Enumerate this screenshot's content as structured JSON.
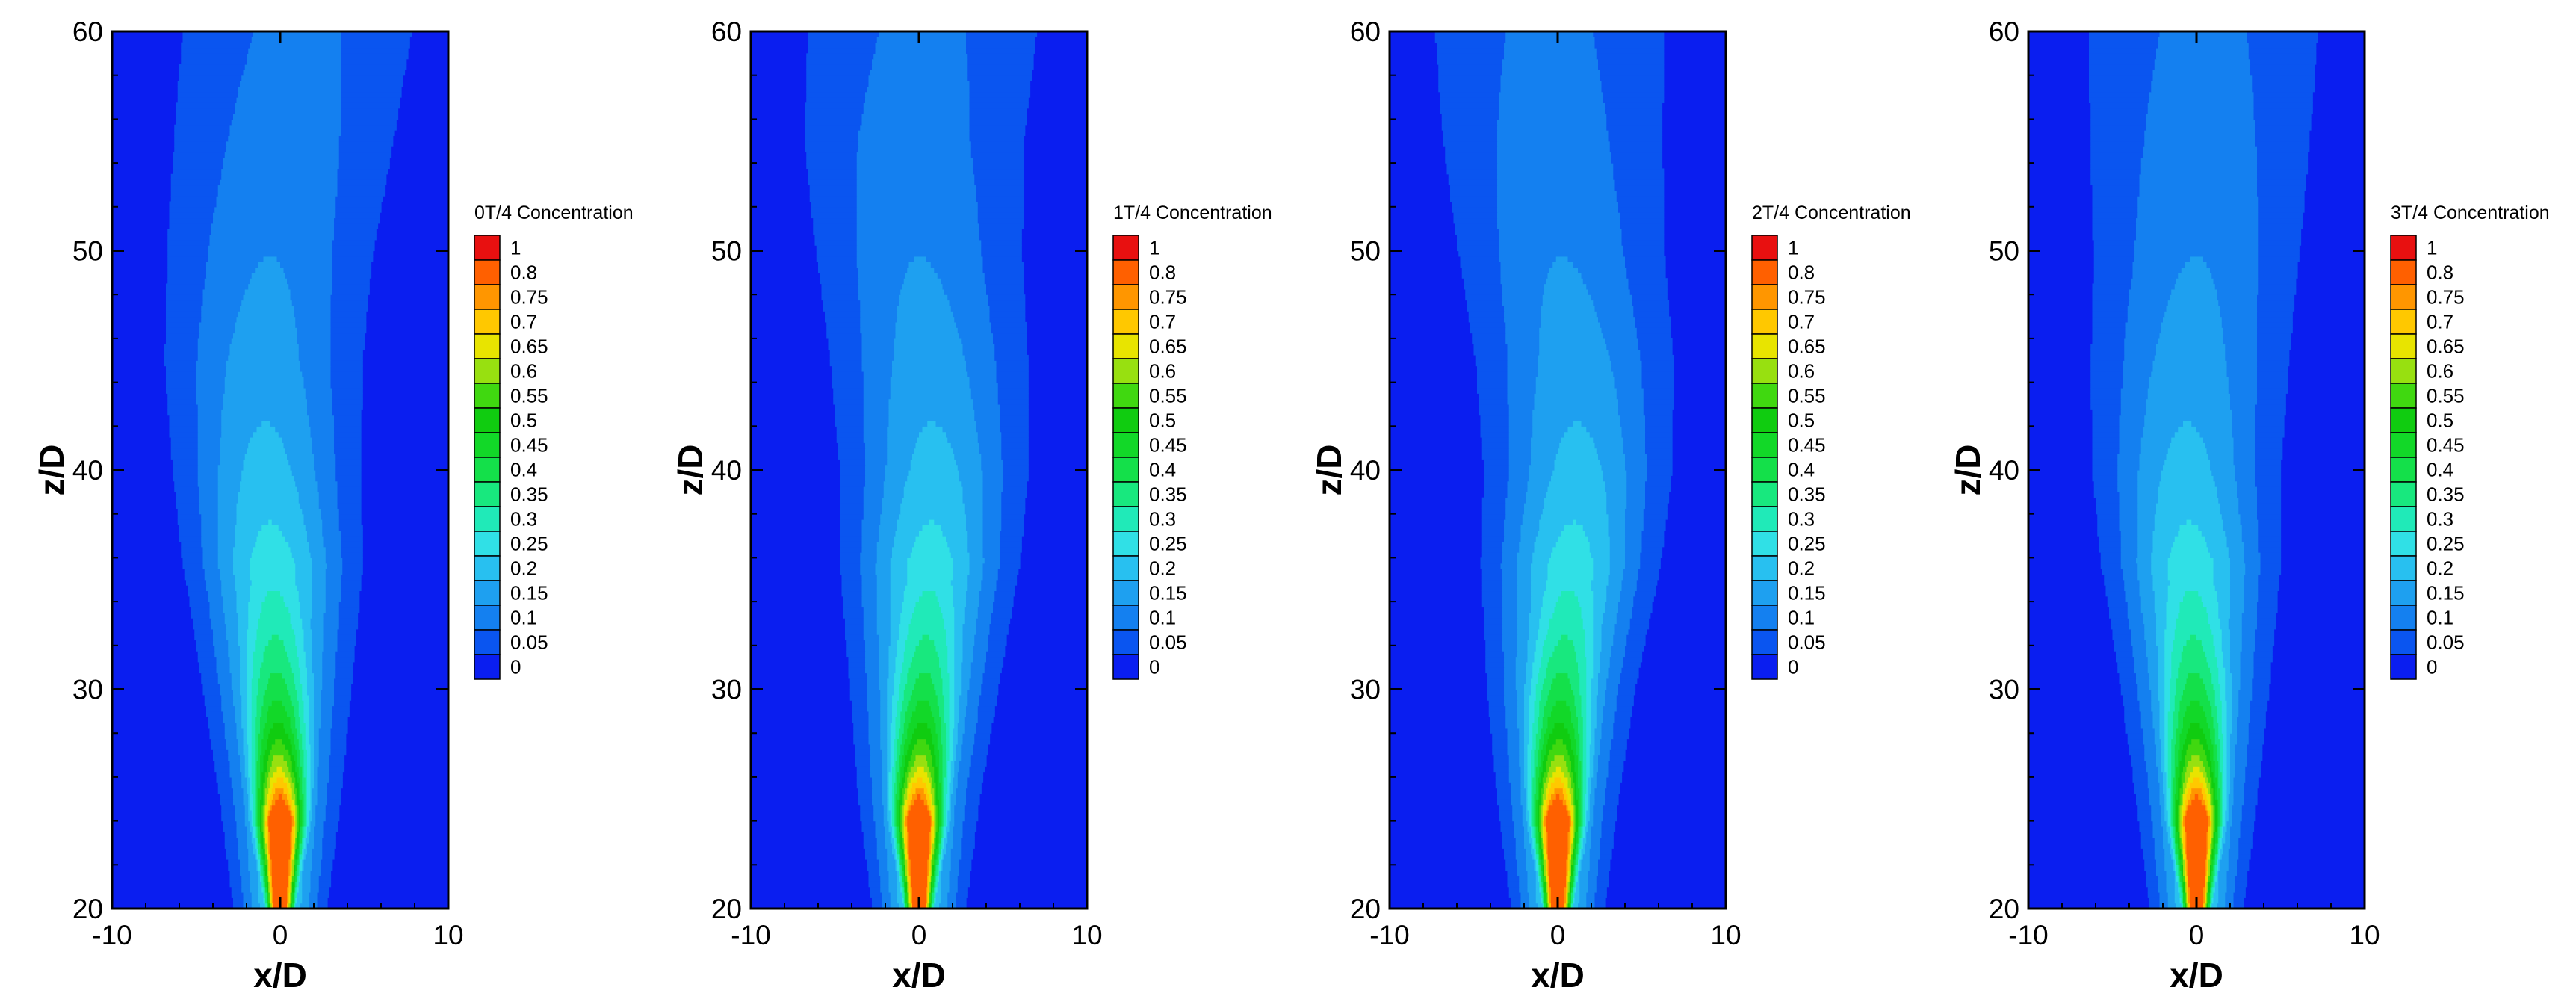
{
  "chart_data": [
    {
      "type": "heatmap",
      "legend_title": "0T/4 Concentration",
      "xlabel": "x/D",
      "ylabel": "z/D",
      "xlim": [
        -10,
        10
      ],
      "ylim": [
        20,
        60
      ],
      "x_ticks": [
        -10,
        0,
        10
      ],
      "y_ticks": [
        20,
        30,
        40,
        50,
        60
      ],
      "x_tick_labels": [
        "-10",
        "0",
        "10"
      ],
      "y_tick_labels": [
        "20",
        "30",
        "40",
        "50",
        "60"
      ],
      "levels": [
        0,
        0.05,
        0.1,
        0.15,
        0.2,
        0.25,
        0.3,
        0.35,
        0.4,
        0.45,
        0.5,
        0.55,
        0.6,
        0.65,
        0.7,
        0.75,
        0.8,
        1
      ],
      "level_labels": [
        "0",
        "0.05",
        "0.1",
        "0.15",
        "0.2",
        "0.25",
        "0.3",
        "0.35",
        "0.4",
        "0.45",
        "0.5",
        "0.55",
        "0.6",
        "0.65",
        "0.7",
        "0.75",
        "0.8",
        "1"
      ],
      "level_colors": [
        "#0a1ef0",
        "#0a55f0",
        "#1480f0",
        "#1ea0f0",
        "#28c0f0",
        "#30e0e6",
        "#20eab8",
        "#18e87e",
        "#14e04a",
        "#12d828",
        "#10cc10",
        "#40d810",
        "#98e010",
        "#e8e400",
        "#ffc800",
        "#ff9600",
        "#ff6000",
        "#e81010"
      ],
      "jet": {
        "nozzle_halfwidth": 0.55,
        "core_length": 4.0,
        "spread_rate": 0.12,
        "centerline_decay": 0.22,
        "min_halfwidth": 2.5,
        "lateral_sway": [
          [
            20,
            0
          ],
          [
            25,
            0
          ],
          [
            30,
            -0.2
          ],
          [
            35,
            -0.4
          ],
          [
            40,
            -0.8
          ],
          [
            45,
            -1.0
          ],
          [
            50,
            -0.6
          ],
          [
            55,
            0.2
          ],
          [
            60,
            1.0
          ]
        ],
        "background": 0.02
      }
    },
    {
      "type": "heatmap",
      "legend_title": "1T/4 Concentration",
      "xlabel": "x/D",
      "ylabel": "z/D",
      "xlim": [
        -10,
        10
      ],
      "ylim": [
        20,
        60
      ],
      "x_ticks": [
        -10,
        0,
        10
      ],
      "y_ticks": [
        20,
        30,
        40,
        50,
        60
      ],
      "x_tick_labels": [
        "-10",
        "0",
        "10"
      ],
      "y_tick_labels": [
        "20",
        "30",
        "40",
        "50",
        "60"
      ],
      "levels": [
        0,
        0.05,
        0.1,
        0.15,
        0.2,
        0.25,
        0.3,
        0.35,
        0.4,
        0.45,
        0.5,
        0.55,
        0.6,
        0.65,
        0.7,
        0.75,
        0.8,
        1
      ],
      "level_labels": [
        "0",
        "0.05",
        "0.1",
        "0.15",
        "0.2",
        "0.25",
        "0.3",
        "0.35",
        "0.4",
        "0.45",
        "0.5",
        "0.55",
        "0.6",
        "0.65",
        "0.7",
        "0.75",
        "0.8",
        "1"
      ],
      "level_colors": [
        "#0a1ef0",
        "#0a55f0",
        "#1480f0",
        "#1ea0f0",
        "#28c0f0",
        "#30e0e6",
        "#20eab8",
        "#18e87e",
        "#14e04a",
        "#12d828",
        "#10cc10",
        "#40d810",
        "#98e010",
        "#e8e400",
        "#ffc800",
        "#ff9600",
        "#ff6000",
        "#e81010"
      ],
      "jet": {
        "nozzle_halfwidth": 0.55,
        "core_length": 4.0,
        "spread_rate": 0.12,
        "centerline_decay": 0.22,
        "min_halfwidth": 2.5,
        "lateral_sway": [
          [
            20,
            0
          ],
          [
            25,
            0
          ],
          [
            30,
            0.3
          ],
          [
            35,
            0.6
          ],
          [
            40,
            0.9
          ],
          [
            45,
            0.6
          ],
          [
            50,
            0.0
          ],
          [
            55,
            -0.3
          ],
          [
            60,
            0.2
          ]
        ],
        "background": 0.02
      }
    },
    {
      "type": "heatmap",
      "legend_title": "2T/4 Concentration",
      "xlabel": "x/D",
      "ylabel": "z/D",
      "xlim": [
        -10,
        10
      ],
      "ylim": [
        20,
        60
      ],
      "x_ticks": [
        -10,
        0,
        10
      ],
      "y_ticks": [
        20,
        30,
        40,
        50,
        60
      ],
      "x_tick_labels": [
        "-10",
        "0",
        "10"
      ],
      "y_tick_labels": [
        "20",
        "30",
        "40",
        "50",
        "60"
      ],
      "levels": [
        0,
        0.05,
        0.1,
        0.15,
        0.2,
        0.25,
        0.3,
        0.35,
        0.4,
        0.45,
        0.5,
        0.55,
        0.6,
        0.65,
        0.7,
        0.75,
        0.8,
        1
      ],
      "level_labels": [
        "0",
        "0.05",
        "0.1",
        "0.15",
        "0.2",
        "0.25",
        "0.3",
        "0.35",
        "0.4",
        "0.45",
        "0.5",
        "0.55",
        "0.6",
        "0.65",
        "0.7",
        "0.75",
        "0.8",
        "1"
      ],
      "level_colors": [
        "#0a1ef0",
        "#0a55f0",
        "#1480f0",
        "#1ea0f0",
        "#28c0f0",
        "#30e0e6",
        "#20eab8",
        "#18e87e",
        "#14e04a",
        "#12d828",
        "#10cc10",
        "#40d810",
        "#98e010",
        "#e8e400",
        "#ffc800",
        "#ff9600",
        "#ff6000",
        "#e81010"
      ],
      "jet": {
        "nozzle_halfwidth": 0.55,
        "core_length": 4.0,
        "spread_rate": 0.12,
        "centerline_decay": 0.22,
        "min_halfwidth": 2.5,
        "lateral_sway": [
          [
            20,
            0
          ],
          [
            25,
            0
          ],
          [
            30,
            0.2
          ],
          [
            35,
            0.7
          ],
          [
            40,
            1.2
          ],
          [
            45,
            1.0
          ],
          [
            50,
            0.2
          ],
          [
            55,
            -0.3
          ],
          [
            60,
            -0.5
          ]
        ],
        "background": 0.02
      }
    },
    {
      "type": "heatmap",
      "legend_title": "3T/4 Concentration",
      "xlabel": "x/D",
      "ylabel": "z/D",
      "xlim": [
        -10,
        10
      ],
      "ylim": [
        20,
        60
      ],
      "x_ticks": [
        -10,
        0,
        10
      ],
      "y_ticks": [
        20,
        30,
        40,
        50,
        60
      ],
      "x_tick_labels": [
        "-10",
        "0",
        "10"
      ],
      "y_tick_labels": [
        "20",
        "30",
        "40",
        "50",
        "60"
      ],
      "levels": [
        0,
        0.05,
        0.1,
        0.15,
        0.2,
        0.25,
        0.3,
        0.35,
        0.4,
        0.45,
        0.5,
        0.55,
        0.6,
        0.65,
        0.7,
        0.75,
        0.8,
        1
      ],
      "level_labels": [
        "0",
        "0.05",
        "0.1",
        "0.15",
        "0.2",
        "0.25",
        "0.3",
        "0.35",
        "0.4",
        "0.45",
        "0.5",
        "0.55",
        "0.6",
        "0.65",
        "0.7",
        "0.75",
        "0.8",
        "1"
      ],
      "level_colors": [
        "#0a1ef0",
        "#0a55f0",
        "#1480f0",
        "#1ea0f0",
        "#28c0f0",
        "#30e0e6",
        "#20eab8",
        "#18e87e",
        "#14e04a",
        "#12d828",
        "#10cc10",
        "#40d810",
        "#98e010",
        "#e8e400",
        "#ffc800",
        "#ff9600",
        "#ff6000",
        "#e81010"
      ],
      "jet": {
        "nozzle_halfwidth": 0.55,
        "core_length": 4.0,
        "spread_rate": 0.12,
        "centerline_decay": 0.22,
        "min_halfwidth": 2.5,
        "lateral_sway": [
          [
            20,
            0
          ],
          [
            25,
            0
          ],
          [
            30,
            -0.1
          ],
          [
            35,
            -0.3
          ],
          [
            40,
            -0.6
          ],
          [
            45,
            -0.4
          ],
          [
            50,
            0.0
          ],
          [
            55,
            0.2
          ],
          [
            60,
            0.4
          ]
        ],
        "background": 0.02
      }
    }
  ]
}
